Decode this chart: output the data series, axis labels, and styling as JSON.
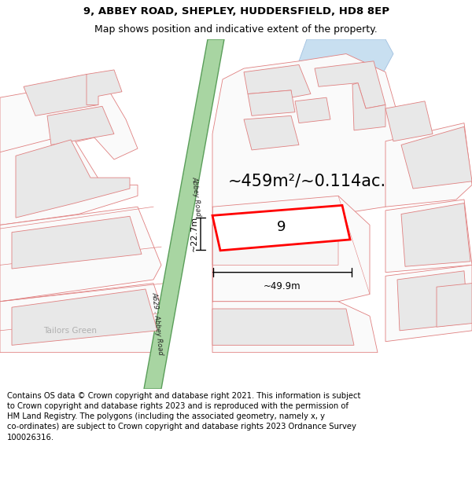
{
  "title_line1": "9, ABBEY ROAD, SHEPLEY, HUDDERSFIELD, HD8 8EP",
  "title_line2": "Map shows position and indicative extent of the property.",
  "footer_text": "Contains OS data © Crown copyright and database right 2021. This information is subject\nto Crown copyright and database rights 2023 and is reproduced with the permission of\nHM Land Registry. The polygons (including the associated geometry, namely x, y\nco-ordinates) are subject to Crown copyright and database rights 2023 Ordnance Survey\n100026316.",
  "road_green_color": "#a8d5a2",
  "road_green_edge": "#5a9e5a",
  "building_fill": "#e8e8e8",
  "building_edge": "#e08080",
  "parcel_outline_color": "#e08080",
  "parcel_color": "#ff0000",
  "water_fill": "#c8dff0",
  "water_edge": "#a0c0e0",
  "label_area": "~459m²/~0.114ac.",
  "label_number": "9",
  "label_width": "~49.9m",
  "label_height_side": "~22.7m",
  "road_label_upper": "Abbey Road",
  "road_label_lower": "A629 : Abbey Road",
  "place_label": "Tailors Green",
  "title_fontsize": 9.5,
  "footer_fontsize": 7.2
}
